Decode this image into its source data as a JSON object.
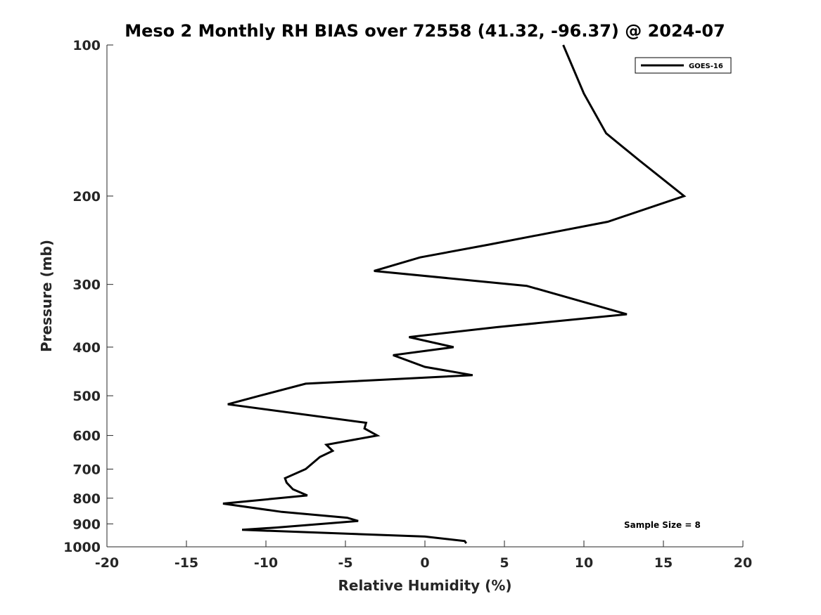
{
  "chart_data": {
    "type": "line",
    "title": "Meso 2 Monthly RH BIAS over 72558 (41.32, -96.37) @ 2024-07",
    "xlabel": "Relative Humidity (%)",
    "ylabel": "Pressure (mb)",
    "xlim": [
      -20,
      20
    ],
    "ylim": [
      100,
      1000
    ],
    "y_scale": "log",
    "y_reversed": true,
    "x_ticks": [
      -20,
      -15,
      -10,
      -5,
      0,
      5,
      10,
      15,
      20
    ],
    "x_tick_labels": [
      "-20",
      "-15",
      "-10",
      "-5",
      "0",
      "5",
      "10",
      "15",
      "20"
    ],
    "y_ticks": [
      100,
      200,
      300,
      400,
      500,
      600,
      700,
      800,
      900,
      1000
    ],
    "y_tick_labels": [
      "100",
      "200",
      "300",
      "400",
      "500",
      "600",
      "700",
      "800",
      "900",
      "1000"
    ],
    "grid": false,
    "legend_position": "top-right",
    "series": [
      {
        "name": "GOES-16",
        "color": "#000000",
        "x": [
          8.7,
          10.0,
          11.4,
          13.5,
          16.3,
          11.5,
          4.0,
          -0.3,
          -3.2,
          6.4,
          10.4,
          12.7,
          4.5,
          -1.0,
          1.8,
          -2.0,
          0.0,
          3.0,
          -7.5,
          -10.4,
          -12.4,
          -3.7,
          -3.8,
          -3.0,
          -6.2,
          -5.8,
          -6.6,
          -7.5,
          -8.8,
          -8.7,
          -8.3,
          -7.4,
          -12.7,
          -9.0,
          -4.9,
          -4.2,
          -9.3,
          -11.5,
          0.0,
          2.5,
          2.6
        ],
        "y": [
          100,
          125,
          150,
          170,
          200,
          225,
          250,
          265,
          282,
          302,
          328,
          344,
          365,
          382,
          400,
          415,
          438,
          455,
          473,
          500,
          520,
          566,
          581,
          600,
          626,
          644,
          662,
          700,
          730,
          745,
          768,
          790,
          820,
          852,
          875,
          888,
          915,
          925,
          954,
          974,
          984
        ]
      }
    ],
    "annotations": [
      "Sample Size = 8"
    ]
  }
}
